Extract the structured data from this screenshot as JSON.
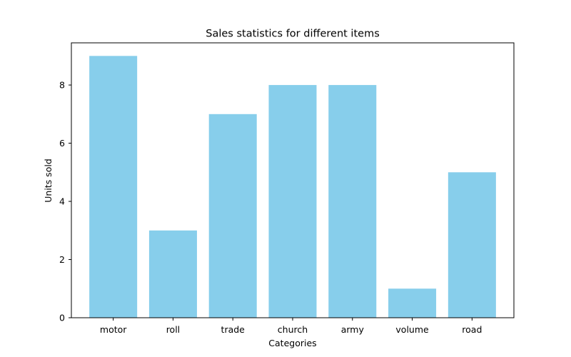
{
  "chart_data": {
    "type": "bar",
    "title": "Sales statistics for different items",
    "xlabel": "Categories",
    "ylabel": "Units sold",
    "categories": [
      "motor",
      "roll",
      "trade",
      "church",
      "army",
      "volume",
      "road"
    ],
    "values": [
      9,
      3,
      7,
      8,
      8,
      1,
      5
    ],
    "yticks": [
      "0",
      "2",
      "4",
      "6",
      "8"
    ],
    "ylim": [
      0,
      9.45
    ],
    "bar_color": "#87ceeb",
    "grid": false,
    "legend": "none"
  }
}
